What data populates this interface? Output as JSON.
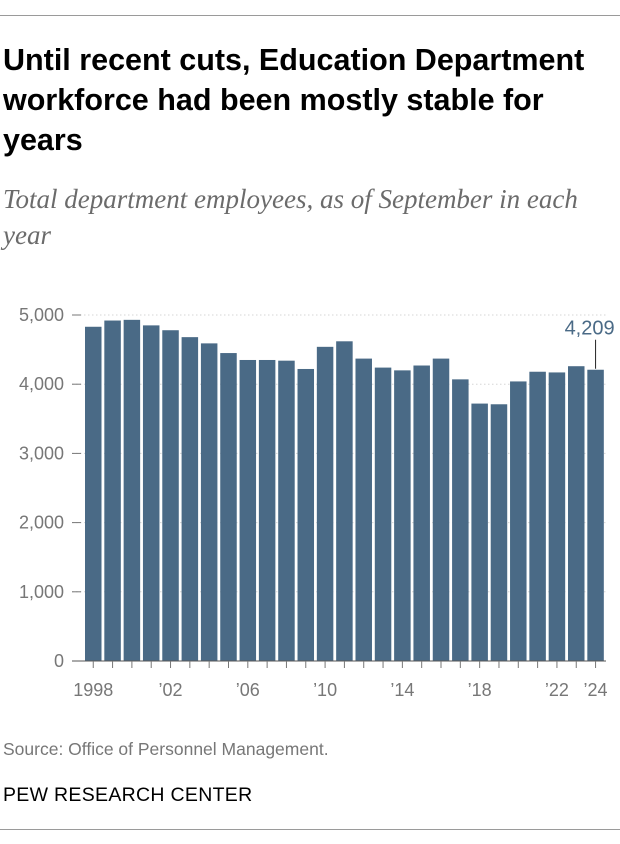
{
  "title": "Until recent cuts, Education Department workforce had been mostly stable for years",
  "subtitle": "Total department employees, as of September in each year",
  "source": "Source: Office of Personnel Management.",
  "org": "PEW RESEARCH CENTER",
  "chart_data": {
    "type": "bar",
    "title": "Until recent cuts, Education Department workforce had been mostly stable for years",
    "subtitle": "Total department employees, as of September in each year",
    "categories": [
      1998,
      1999,
      2000,
      2001,
      2002,
      2003,
      2004,
      2005,
      2006,
      2007,
      2008,
      2009,
      2010,
      2011,
      2012,
      2013,
      2014,
      2015,
      2016,
      2017,
      2018,
      2019,
      2020,
      2021,
      2022,
      2023,
      2024
    ],
    "values": [
      4830,
      4920,
      4930,
      4850,
      4780,
      4680,
      4590,
      4450,
      4350,
      4350,
      4340,
      4220,
      4540,
      4620,
      4370,
      4240,
      4200,
      4270,
      4370,
      4070,
      3720,
      3710,
      4040,
      4180,
      4170,
      4260,
      4209
    ],
    "ylim": [
      0,
      5000
    ],
    "yticks": [
      0,
      1000,
      2000,
      3000,
      4000,
      5000
    ],
    "ytick_labels": [
      "0",
      "1,000",
      "2,000",
      "3,000",
      "4,000",
      "5,000"
    ],
    "xtick_years": [
      1998,
      2002,
      2006,
      2010,
      2014,
      2018,
      2022,
      2024
    ],
    "xtick_labels": [
      "1998",
      "’02",
      "’06",
      "’10",
      "’14",
      "’18",
      "’22",
      "’24"
    ],
    "annotation": {
      "year": 2024,
      "text": "4,209"
    },
    "bar_color": "#4a6a86",
    "annotation_color": "#4a6a86",
    "grid": true,
    "legend": "none"
  }
}
